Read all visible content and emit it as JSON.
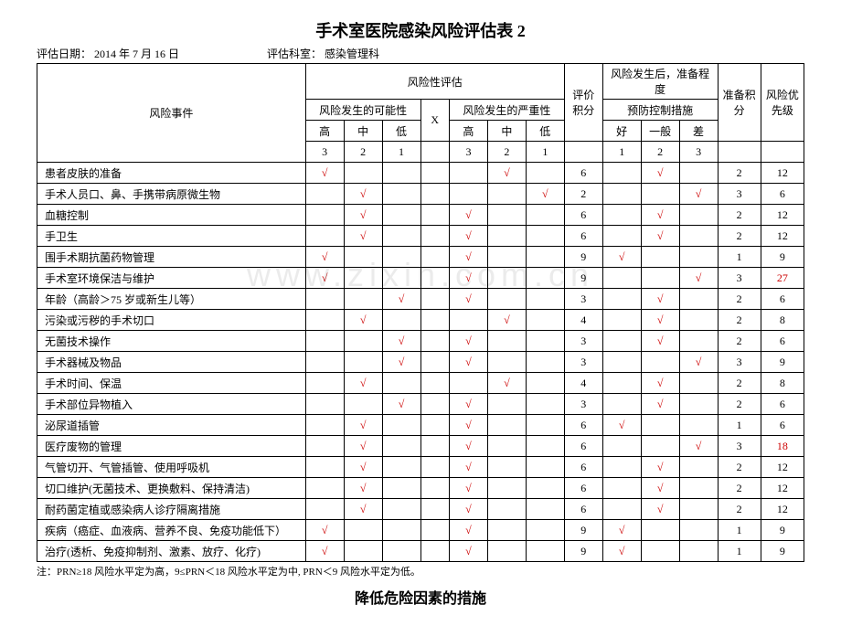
{
  "title": "手术室医院感染风险评估表 2",
  "meta": {
    "date_label": "评估日期：",
    "date_value": "2014 年 7 月 16 日",
    "dept_label": "评估科室：",
    "dept_value": "感染管理科"
  },
  "headers": {
    "event": "风险事件",
    "assess": "风险性评估",
    "possibility": "风险发生的可能性",
    "x": "X",
    "severity": "风险发生的严重性",
    "eval_score": "评价积分",
    "afterward": "风险发生后，准备程度",
    "prevention": "预防控制措施",
    "prep_score": "准备积分",
    "priority": "风险优先级",
    "high": "高",
    "mid": "中",
    "low": "低",
    "good": "好",
    "normal": "一般",
    "bad": "差",
    "n3": "3",
    "n2": "2",
    "n1": "1",
    "p1": "1",
    "p2": "2",
    "p3": "3"
  },
  "rows": [
    {
      "event": "患者皮肤的准备",
      "p": [
        1,
        0,
        0
      ],
      "s": [
        0,
        1,
        0
      ],
      "es": "6",
      "c": [
        0,
        1,
        0
      ],
      "ps": "2",
      "pri": "12",
      "red": false
    },
    {
      "event": "手术人员口、鼻、手携带病原微生物",
      "p": [
        0,
        1,
        0
      ],
      "s": [
        0,
        0,
        1
      ],
      "es": "2",
      "c": [
        0,
        0,
        1
      ],
      "ps": "3",
      "pri": "6",
      "red": false
    },
    {
      "event": "血糖控制",
      "p": [
        0,
        1,
        0
      ],
      "s": [
        1,
        0,
        0
      ],
      "es": "6",
      "c": [
        0,
        1,
        0
      ],
      "ps": "2",
      "pri": "12",
      "red": false
    },
    {
      "event": "手卫生",
      "p": [
        0,
        1,
        0
      ],
      "s": [
        1,
        0,
        0
      ],
      "es": "6",
      "c": [
        0,
        1,
        0
      ],
      "ps": "2",
      "pri": "12",
      "red": false
    },
    {
      "event": "围手术期抗菌药物管理",
      "p": [
        1,
        0,
        0
      ],
      "s": [
        1,
        0,
        0
      ],
      "es": "9",
      "c": [
        1,
        0,
        0
      ],
      "ps": "1",
      "pri": "9",
      "red": false
    },
    {
      "event": "手术室环境保洁与维护",
      "p": [
        1,
        0,
        0
      ],
      "s": [
        1,
        0,
        0
      ],
      "es": "9",
      "c": [
        0,
        0,
        1
      ],
      "ps": "3",
      "pri": "27",
      "red": true
    },
    {
      "event": "年龄（高龄＞75 岁或新生儿等）",
      "p": [
        0,
        0,
        1
      ],
      "s": [
        1,
        0,
        0
      ],
      "es": "3",
      "c": [
        0,
        1,
        0
      ],
      "ps": "2",
      "pri": "6",
      "red": false
    },
    {
      "event": "污染或污秽的手术切口",
      "p": [
        0,
        1,
        0
      ],
      "s": [
        0,
        1,
        0
      ],
      "es": "4",
      "c": [
        0,
        1,
        0
      ],
      "ps": "2",
      "pri": "8",
      "red": false
    },
    {
      "event": "无菌技术操作",
      "p": [
        0,
        0,
        1
      ],
      "s": [
        1,
        0,
        0
      ],
      "es": "3",
      "c": [
        0,
        1,
        0
      ],
      "ps": "2",
      "pri": "6",
      "red": false
    },
    {
      "event": "手术器械及物品",
      "p": [
        0,
        0,
        1
      ],
      "s": [
        1,
        0,
        0
      ],
      "es": "3",
      "c": [
        0,
        0,
        1
      ],
      "ps": "3",
      "pri": "9",
      "red": false
    },
    {
      "event": "手术时间、保温",
      "p": [
        0,
        1,
        0
      ],
      "s": [
        0,
        1,
        0
      ],
      "es": "4",
      "c": [
        0,
        1,
        0
      ],
      "ps": "2",
      "pri": "8",
      "red": false
    },
    {
      "event": "手术部位异物植入",
      "p": [
        0,
        0,
        1
      ],
      "s": [
        1,
        0,
        0
      ],
      "es": "3",
      "c": [
        0,
        1,
        0
      ],
      "ps": "2",
      "pri": "6",
      "red": false
    },
    {
      "event": "泌尿道插管",
      "p": [
        0,
        1,
        0
      ],
      "s": [
        1,
        0,
        0
      ],
      "es": "6",
      "c": [
        1,
        0,
        0
      ],
      "ps": "1",
      "pri": "6",
      "red": false
    },
    {
      "event": "医疗废物的管理",
      "p": [
        0,
        1,
        0
      ],
      "s": [
        1,
        0,
        0
      ],
      "es": "6",
      "c": [
        0,
        0,
        1
      ],
      "ps": "3",
      "pri": "18",
      "red": true
    },
    {
      "event": "气管切开、气管插管、使用呼吸机",
      "p": [
        0,
        1,
        0
      ],
      "s": [
        1,
        0,
        0
      ],
      "es": "6",
      "c": [
        0,
        1,
        0
      ],
      "ps": "2",
      "pri": "12",
      "red": false
    },
    {
      "event": "切口维护(无菌技术、更换敷料、保持清洁)",
      "p": [
        0,
        1,
        0
      ],
      "s": [
        1,
        0,
        0
      ],
      "es": "6",
      "c": [
        0,
        1,
        0
      ],
      "ps": "2",
      "pri": "12",
      "red": false
    },
    {
      "event": "耐药菌定植或感染病人诊疗隔离措施",
      "p": [
        0,
        1,
        0
      ],
      "s": [
        1,
        0,
        0
      ],
      "es": "6",
      "c": [
        0,
        1,
        0
      ],
      "ps": "2",
      "pri": "12",
      "red": false
    },
    {
      "event": "疾病（癌症、血液病、营养不良、免疫功能低下）",
      "p": [
        1,
        0,
        0
      ],
      "s": [
        1,
        0,
        0
      ],
      "es": "9",
      "c": [
        1,
        0,
        0
      ],
      "ps": "1",
      "pri": "9",
      "red": false
    },
    {
      "event": "治疗(透析、免疫抑制剂、激素、放疗、化疗)",
      "p": [
        1,
        0,
        0
      ],
      "s": [
        1,
        0,
        0
      ],
      "es": "9",
      "c": [
        1,
        0,
        0
      ],
      "ps": "1",
      "pri": "9",
      "red": false
    }
  ],
  "note": "注：PRN≥18 风险水平定为高，9≤PRN＜18 风险水平定为中, PRN＜9 风险水平定为低。",
  "subtitle": "降低危险因素的措施",
  "watermark": "www.zixin.com.cn",
  "checkmark": "√"
}
